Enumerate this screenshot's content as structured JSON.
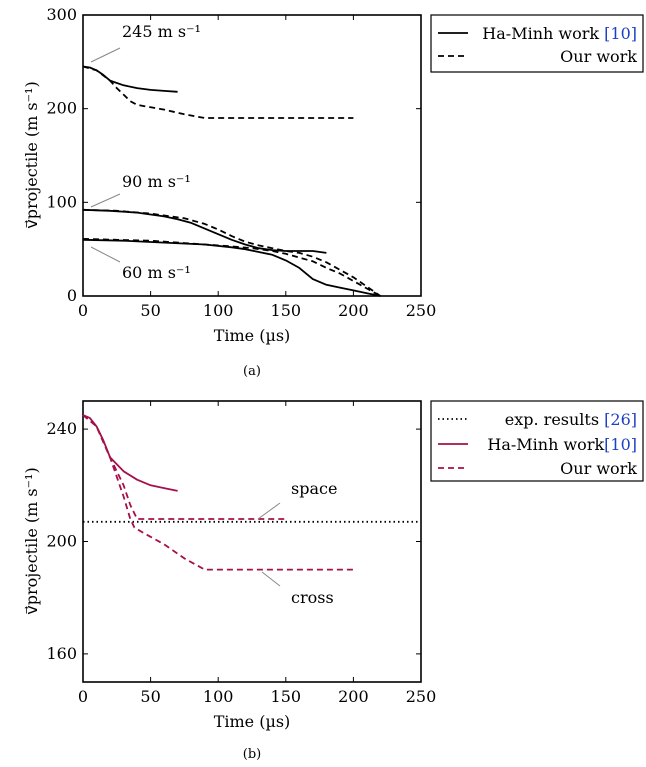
{
  "chart_data": [
    {
      "type": "line",
      "caption": "(a)",
      "xlabel": "Time (µs)",
      "ylabel": "v⃗projectile (m s⁻¹)",
      "xlim": [
        0,
        250
      ],
      "ylim": [
        0,
        300
      ],
      "xticks": [
        "0",
        "50",
        "100",
        "150",
        "200",
        "250"
      ],
      "yticks": [
        "0",
        "100",
        "200",
        "300"
      ],
      "legend": {
        "placement": "outside-top-right",
        "entries": [
          {
            "label": "Ha-Minh work ",
            "ref": "[10]",
            "style": "solid"
          },
          {
            "label": "Our work",
            "ref": "",
            "style": "dashed"
          }
        ]
      },
      "annotations": [
        {
          "text": "245 m s⁻¹",
          "x": 1,
          "y": 245
        },
        {
          "text": "90 m s⁻¹",
          "x": 1,
          "y": 92
        },
        {
          "text": "60 m s⁻¹",
          "x": 1,
          "y": 61
        }
      ],
      "series": [
        {
          "style": "solid",
          "color": "#000000",
          "points": [
            [
              0,
              245
            ],
            [
              5,
              244
            ],
            [
              10,
              241
            ],
            [
              15,
              236
            ],
            [
              20,
              230
            ],
            [
              30,
              225
            ],
            [
              40,
              222
            ],
            [
              50,
              220
            ],
            [
              60,
              219
            ],
            [
              70,
              218
            ]
          ]
        },
        {
          "style": "dashed",
          "color": "#000000",
          "points": [
            [
              0,
              245
            ],
            [
              10,
              241
            ],
            [
              20,
              230
            ],
            [
              25,
              222
            ],
            [
              30,
              215
            ],
            [
              35,
              208
            ],
            [
              40,
              204
            ],
            [
              60,
              199
            ],
            [
              75,
              194
            ],
            [
              90,
              190
            ],
            [
              120,
              190
            ],
            [
              150,
              190
            ],
            [
              180,
              190
            ],
            [
              200,
              190
            ]
          ]
        },
        {
          "style": "solid",
          "color": "#000000",
          "points": [
            [
              0,
              92
            ],
            [
              20,
              91
            ],
            [
              40,
              89
            ],
            [
              60,
              85
            ],
            [
              70,
              82
            ],
            [
              80,
              78
            ],
            [
              90,
              72
            ],
            [
              100,
              66
            ],
            [
              110,
              60
            ],
            [
              120,
              55
            ],
            [
              130,
              51
            ],
            [
              140,
              49
            ],
            [
              150,
              48
            ],
            [
              160,
              48
            ],
            [
              170,
              48
            ],
            [
              180,
              46
            ]
          ]
        },
        {
          "style": "dashed",
          "color": "#000000",
          "points": [
            [
              0,
              92
            ],
            [
              25,
              91
            ],
            [
              50,
              88
            ],
            [
              75,
              83
            ],
            [
              90,
              77
            ],
            [
              100,
              71
            ],
            [
              110,
              64
            ],
            [
              120,
              58
            ],
            [
              130,
              54
            ],
            [
              140,
              51
            ],
            [
              150,
              48
            ],
            [
              160,
              46
            ],
            [
              170,
              42
            ],
            [
              180,
              36
            ],
            [
              190,
              28
            ],
            [
              200,
              20
            ],
            [
              210,
              10
            ],
            [
              220,
              0
            ]
          ]
        },
        {
          "style": "solid",
          "color": "#000000",
          "points": [
            [
              0,
              60
            ],
            [
              30,
              59
            ],
            [
              60,
              57
            ],
            [
              90,
              55
            ],
            [
              110,
              52
            ],
            [
              120,
              50
            ],
            [
              130,
              47
            ],
            [
              140,
              44
            ],
            [
              150,
              38
            ],
            [
              160,
              30
            ],
            [
              170,
              18
            ],
            [
              180,
              12
            ],
            [
              190,
              9
            ],
            [
              200,
              6
            ],
            [
              210,
              3
            ],
            [
              220,
              0
            ]
          ]
        },
        {
          "style": "dashed",
          "color": "#000000",
          "points": [
            [
              0,
              61
            ],
            [
              50,
              59
            ],
            [
              90,
              55
            ],
            [
              110,
              53
            ],
            [
              125,
              51
            ],
            [
              140,
              48
            ],
            [
              150,
              45
            ],
            [
              160,
              41
            ],
            [
              170,
              37
            ],
            [
              180,
              30
            ],
            [
              190,
              24
            ],
            [
              200,
              16
            ],
            [
              210,
              8
            ],
            [
              220,
              0
            ]
          ]
        }
      ]
    },
    {
      "type": "line",
      "caption": "(b)",
      "xlabel": "Time (µs)",
      "ylabel": "v⃗projectile (m s⁻¹)",
      "xlim": [
        0,
        250
      ],
      "ylim": [
        150,
        250
      ],
      "xticks": [
        "0",
        "50",
        "100",
        "150",
        "200",
        "250"
      ],
      "yticks": [
        "160",
        "200",
        "240"
      ],
      "legend": {
        "placement": "outside-top-right",
        "entries": [
          {
            "label": "exp. results ",
            "ref": "[26]",
            "style": "dotted",
            "color": "#000000"
          },
          {
            "label": "Ha-Minh work",
            "ref": "[10]",
            "style": "solid",
            "color": "#a5104a"
          },
          {
            "label": "Our work",
            "ref": "",
            "style": "dashed",
            "color": "#a5104a"
          }
        ]
      },
      "annotations": [
        {
          "text": "space",
          "x": 130,
          "y": 208
        },
        {
          "text": "cross",
          "x": 130,
          "y": 190
        }
      ],
      "series": [
        {
          "style": "dotted",
          "color": "#000000",
          "points": [
            [
              0,
              207
            ],
            [
              250,
              207
            ]
          ]
        },
        {
          "style": "solid",
          "color": "#a5104a",
          "points": [
            [
              0,
              245
            ],
            [
              5,
              244
            ],
            [
              10,
              241
            ],
            [
              15,
              236
            ],
            [
              20,
              230
            ],
            [
              30,
              225
            ],
            [
              40,
              222
            ],
            [
              50,
              220
            ],
            [
              60,
              219
            ],
            [
              70,
              218
            ]
          ]
        },
        {
          "style": "dashed",
          "color": "#a5104a",
          "points": [
            [
              0,
              245
            ],
            [
              10,
              241
            ],
            [
              20,
              230
            ],
            [
              25,
              225
            ],
            [
              30,
              220
            ],
            [
              35,
              213
            ],
            [
              40,
              208
            ],
            [
              60,
              208
            ],
            [
              100,
              208
            ],
            [
              130,
              208
            ],
            [
              150,
              208
            ]
          ]
        },
        {
          "style": "dashed",
          "color": "#a5104a",
          "points": [
            [
              0,
              245
            ],
            [
              10,
              241
            ],
            [
              20,
              230
            ],
            [
              25,
              223
            ],
            [
              30,
              216
            ],
            [
              35,
              208
            ],
            [
              38,
              205
            ],
            [
              45,
              203
            ],
            [
              60,
              199
            ],
            [
              75,
              194
            ],
            [
              90,
              190
            ],
            [
              120,
              190
            ],
            [
              150,
              190
            ],
            [
              180,
              190
            ],
            [
              200,
              190
            ]
          ]
        }
      ]
    }
  ]
}
